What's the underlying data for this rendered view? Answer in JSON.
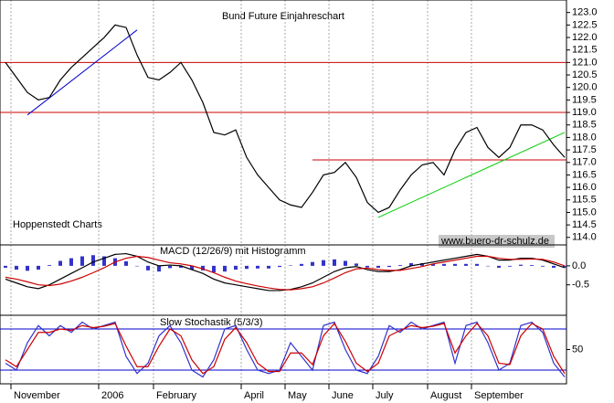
{
  "chart_data": [
    {
      "type": "line",
      "title": "Bund Future Einjahreschart",
      "source": "Hoppenstedt Charts",
      "watermark": "www.buero-dr-schulz.de",
      "categories": [
        null,
        "November",
        null,
        null,
        null,
        null,
        null,
        null,
        null,
        "2006",
        null,
        null,
        null,
        null,
        "February",
        null,
        null,
        null,
        null,
        null,
        null,
        null,
        "April",
        null,
        null,
        null,
        "May",
        null,
        null,
        null,
        "June",
        null,
        null,
        null,
        "July",
        null,
        null,
        null,
        null,
        "August",
        null,
        null,
        null,
        "September",
        null,
        null,
        null,
        null,
        null,
        null,
        null,
        null
      ],
      "series": [
        {
          "color": "#000000",
          "values": [
            121.0,
            120.4,
            119.8,
            119.5,
            119.6,
            120.3,
            120.8,
            121.2,
            121.6,
            122.0,
            122.5,
            122.4,
            121.3,
            120.4,
            120.3,
            120.6,
            121.0,
            120.3,
            119.4,
            118.2,
            118.1,
            118.3,
            117.2,
            116.5,
            116.0,
            115.5,
            115.3,
            115.2,
            115.8,
            116.5,
            116.6,
            117.0,
            116.4,
            115.4,
            115.0,
            115.2,
            115.9,
            116.5,
            116.9,
            117.0,
            116.5,
            117.5,
            118.2,
            118.4,
            117.6,
            117.2,
            117.6,
            118.5,
            118.5,
            118.3,
            117.7,
            117.2
          ]
        }
      ],
      "hlines": [
        {
          "value": 121.0,
          "color": "#cc0000",
          "from": 0
        },
        {
          "value": 119.0,
          "color": "#cc0000",
          "from": 0
        },
        {
          "value": 117.1,
          "color": "#cc0000",
          "from": 28
        }
      ],
      "trendlines": [
        {
          "color": "#0000cc",
          "start": [
            2,
            118.9
          ],
          "end": [
            12,
            122.3
          ]
        },
        {
          "color": "#00cc00",
          "start": [
            34,
            114.8
          ],
          "end": [
            51,
            118.2
          ]
        }
      ],
      "ylim": [
        113.7,
        123.5
      ],
      "yticks": [
        {
          "value": 114,
          "label": "114.0"
        },
        114.5,
        {
          "value": 115,
          "label": "115.0"
        },
        115.5,
        {
          "value": 116,
          "label": "116.0"
        },
        116.5,
        {
          "value": 117,
          "label": "117.0"
        },
        117.5,
        {
          "value": 118,
          "label": "118.0"
        },
        118.5,
        {
          "value": 119,
          "label": "119.0"
        },
        119.5,
        {
          "value": 120,
          "label": "120.0"
        },
        120.5,
        {
          "value": 121,
          "label": "121.0"
        },
        121.5,
        {
          "value": 122,
          "label": "122.0"
        },
        122.5,
        {
          "value": 123,
          "label": "123.0"
        }
      ]
    },
    {
      "type": "macd",
      "title": "MACD (12/26/9) mit Histogramm",
      "series": [
        {
          "color": "#000000",
          "values": [
            -0.35,
            -0.45,
            -0.55,
            -0.6,
            -0.5,
            -0.35,
            -0.2,
            -0.05,
            0.1,
            0.2,
            0.3,
            0.32,
            0.25,
            0.1,
            0.0,
            0.02,
            0.0,
            -0.1,
            -0.2,
            -0.35,
            -0.45,
            -0.5,
            -0.55,
            -0.6,
            -0.65,
            -0.65,
            -0.62,
            -0.55,
            -0.45,
            -0.3,
            -0.15,
            -0.05,
            -0.02,
            -0.1,
            -0.15,
            -0.15,
            -0.1,
            0.0,
            0.05,
            0.1,
            0.15,
            0.2,
            0.25,
            0.3,
            0.25,
            0.15,
            0.15,
            0.2,
            0.2,
            0.15,
            0.05,
            -0.05
          ]
        },
        {
          "color": "#cc0000",
          "values": [
            -0.3,
            -0.35,
            -0.42,
            -0.5,
            -0.52,
            -0.48,
            -0.4,
            -0.3,
            -0.18,
            -0.05,
            0.1,
            0.2,
            0.25,
            0.22,
            0.15,
            0.08,
            0.05,
            0,
            -0.08,
            -0.18,
            -0.3,
            -0.4,
            -0.47,
            -0.53,
            -0.58,
            -0.62,
            -0.63,
            -0.6,
            -0.55,
            -0.45,
            -0.32,
            -0.18,
            -0.08,
            -0.06,
            -0.1,
            -0.12,
            -0.12,
            -0.07,
            -0.02,
            0.05,
            0.1,
            0.15,
            0.2,
            0.25,
            0.25,
            0.2,
            0.17,
            0.17,
            0.18,
            0.17,
            0.1,
            0
          ]
        }
      ],
      "histogram": {
        "color": "#3333cc",
        "values": [
          -0.05,
          -0.1,
          -0.13,
          -0.1,
          0.02,
          0.13,
          0.2,
          0.25,
          0.28,
          0.25,
          0.2,
          0.12,
          0,
          -0.12,
          -0.15,
          -0.06,
          -0.05,
          -0.1,
          -0.12,
          -0.17,
          -0.15,
          -0.1,
          -0.08,
          -0.07,
          -0.07,
          -0.03,
          0.01,
          0.05,
          0.1,
          0.15,
          0.17,
          0.13,
          0.06,
          -0.04,
          -0.05,
          -0.03,
          0.02,
          0.07,
          0.07,
          0.05,
          0.05,
          0.05,
          0.05,
          0.05,
          0,
          -0.05,
          -0.02,
          0.03,
          0.02,
          -0.02,
          -0.05,
          -0.05
        ]
      },
      "ylim": [
        -1.3,
        0.55
      ],
      "yticks": [
        {
          "value": -0.5,
          "label": "-0.5"
        },
        {
          "value": 0,
          "label": "0.0"
        }
      ]
    },
    {
      "type": "line",
      "title": "Slow Stochastik (5/3/3)",
      "series": [
        {
          "color": "#3333cc",
          "values": [
            30,
            20,
            60,
            85,
            70,
            85,
            75,
            90,
            80,
            85,
            90,
            40,
            15,
            30,
            70,
            85,
            60,
            20,
            10,
            35,
            80,
            85,
            50,
            20,
            15,
            20,
            60,
            40,
            20,
            85,
            90,
            50,
            20,
            15,
            40,
            85,
            75,
            90,
            80,
            85,
            90,
            30,
            85,
            90,
            60,
            20,
            30,
            85,
            90,
            75,
            30,
            10
          ]
        },
        {
          "color": "#cc0000",
          "values": [
            35,
            25,
            50,
            75,
            75,
            80,
            78,
            85,
            82,
            84,
            88,
            55,
            25,
            25,
            55,
            80,
            70,
            35,
            15,
            25,
            65,
            82,
            60,
            30,
            18,
            18,
            45,
            45,
            28,
            70,
            88,
            62,
            30,
            18,
            30,
            70,
            78,
            85,
            82,
            84,
            88,
            45,
            70,
            88,
            70,
            30,
            28,
            70,
            88,
            80,
            40,
            15
          ]
        }
      ],
      "hlines": [
        {
          "value": 80,
          "color": "#0000cc",
          "from": 0
        },
        {
          "value": 20,
          "color": "#0000cc",
          "from": 0
        }
      ],
      "ylim": [
        0,
        100
      ],
      "yticks": [
        50
      ]
    }
  ]
}
